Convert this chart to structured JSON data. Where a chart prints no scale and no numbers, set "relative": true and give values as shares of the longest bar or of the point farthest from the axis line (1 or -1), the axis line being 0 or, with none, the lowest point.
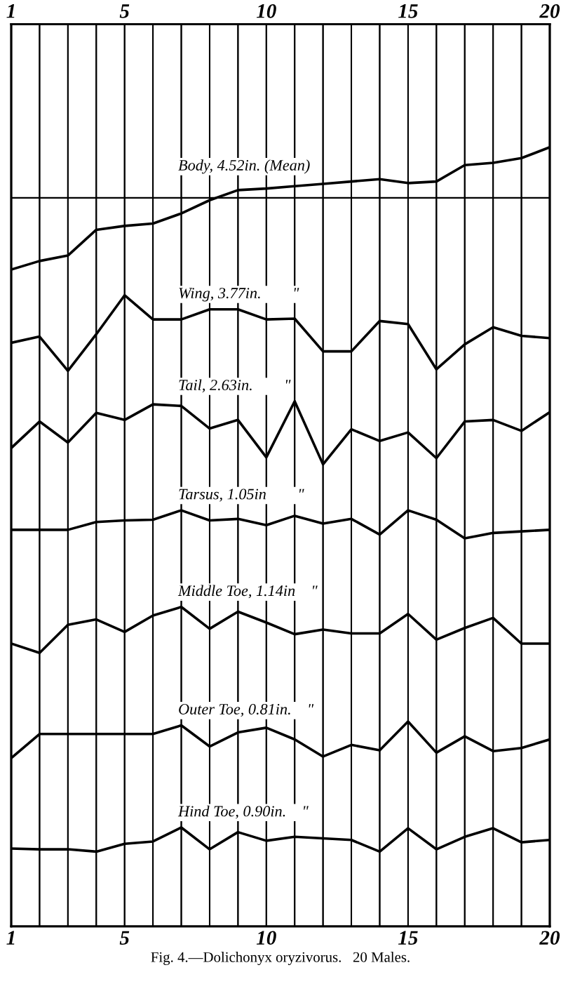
{
  "chart_data": {
    "type": "line",
    "relative": true,
    "line_style": "solid",
    "grid": "x",
    "x": [
      1,
      2,
      3,
      4,
      5,
      6,
      7,
      8,
      9,
      10,
      11,
      12,
      13,
      14,
      15,
      16,
      17,
      18,
      19,
      20
    ],
    "xlim": [
      1,
      20
    ],
    "xticks": [
      1,
      {
        "value": 2,
        "label": null
      },
      {
        "value": 3,
        "label": null
      },
      {
        "value": 4,
        "label": null
      },
      5,
      {
        "value": 6,
        "label": null
      },
      {
        "value": 7,
        "label": null
      },
      {
        "value": 8,
        "label": null
      },
      {
        "value": 9,
        "label": null
      },
      10,
      {
        "value": 11,
        "label": null
      },
      {
        "value": 12,
        "label": null
      },
      {
        "value": 13,
        "label": null
      },
      {
        "value": 14,
        "label": null
      },
      15,
      {
        "value": 16,
        "label": null
      },
      {
        "value": 17,
        "label": null
      },
      {
        "value": 18,
        "label": null
      },
      {
        "value": 19,
        "label": null
      },
      20
    ],
    "x2lim": [
      1,
      20
    ],
    "x2ticks": [
      1,
      {
        "value": 2,
        "label": null
      },
      {
        "value": 3,
        "label": null
      },
      {
        "value": 4,
        "label": null
      },
      5,
      {
        "value": 6,
        "label": null
      },
      {
        "value": 7,
        "label": null
      },
      {
        "value": 8,
        "label": null
      },
      {
        "value": 9,
        "label": null
      },
      10,
      {
        "value": 11,
        "label": null
      },
      {
        "value": 12,
        "label": null
      },
      {
        "value": 13,
        "label": null
      },
      {
        "value": 14,
        "label": null
      },
      15,
      {
        "value": 16,
        "label": null
      },
      {
        "value": 17,
        "label": null
      },
      {
        "value": 18,
        "label": null
      },
      {
        "value": 19,
        "label": null
      },
      20
    ],
    "series": [
      {
        "name": "Body, 4.52in. (Mean)",
        "color": "#000000",
        "values": [
          0.843,
          0.854,
          0.861,
          0.894,
          0.899,
          0.902,
          0.915,
          0.932,
          0.945,
          0.947,
          0.95,
          0.953,
          0.956,
          0.959,
          0.954,
          0.956,
          0.977,
          0.98,
          0.986,
          1.0
        ]
      },
      {
        "name": "Wing, 3.77in.        \"",
        "color": "#000000",
        "values": [
          0.749,
          0.757,
          0.713,
          0.76,
          0.81,
          0.779,
          0.779,
          0.792,
          0.792,
          0.779,
          0.78,
          0.738,
          0.738,
          0.777,
          0.773,
          0.715,
          0.747,
          0.769,
          0.758,
          0.755
        ]
      },
      {
        "name": "Tail, 2.63in.        \"",
        "color": "#000000",
        "values": [
          0.614,
          0.648,
          0.621,
          0.659,
          0.65,
          0.67,
          0.668,
          0.639,
          0.65,
          0.602,
          0.674,
          0.593,
          0.638,
          0.623,
          0.634,
          0.601,
          0.648,
          0.65,
          0.636,
          0.66
        ]
      },
      {
        "name": "Tarsus, 1.05in        \"",
        "color": "#000000",
        "values": [
          0.509,
          0.509,
          0.509,
          0.519,
          0.521,
          0.522,
          0.534,
          0.521,
          0.523,
          0.515,
          0.527,
          0.517,
          0.523,
          0.503,
          0.534,
          0.522,
          0.498,
          0.505,
          0.507,
          0.509
        ]
      },
      {
        "name": "Middle Toe, 1.14in    \"",
        "color": "#000000",
        "values": [
          0.363,
          0.351,
          0.387,
          0.394,
          0.378,
          0.399,
          0.41,
          0.382,
          0.404,
          0.39,
          0.375,
          0.381,
          0.376,
          0.376,
          0.401,
          0.368,
          0.383,
          0.396,
          0.363,
          0.363
        ]
      },
      {
        "name": "Outer Toe, 0.81in.    \"",
        "color": "#000000",
        "values": [
          0.216,
          0.247,
          0.247,
          0.247,
          0.247,
          0.247,
          0.258,
          0.231,
          0.249,
          0.255,
          0.24,
          0.218,
          0.233,
          0.226,
          0.263,
          0.223,
          0.244,
          0.225,
          0.229,
          0.24
        ]
      },
      {
        "name": "Hind Toe, 0.90in.    \"",
        "color": "#000000",
        "values": [
          0.1,
          0.099,
          0.099,
          0.096,
          0.106,
          0.109,
          0.127,
          0.099,
          0.121,
          0.11,
          0.115,
          0.113,
          0.111,
          0.096,
          0.126,
          0.099,
          0.115,
          0.126,
          0.108,
          0.111
        ]
      }
    ],
    "ref_lines": [
      {
        "axis": "y",
        "value": 0.935,
        "color": "#000000",
        "line_style": "solid"
      }
    ],
    "annotations": [
      "Fig. 4.—Dolichonyx oryzivorus.   20 Males."
    ]
  }
}
